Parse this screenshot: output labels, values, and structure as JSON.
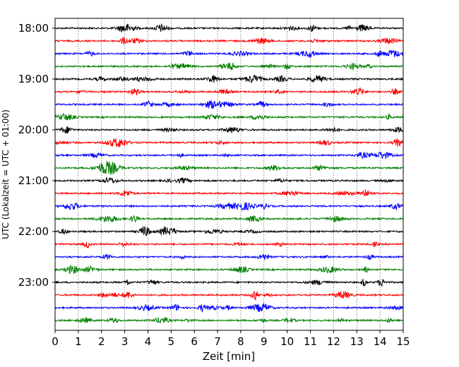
{
  "chart_data": {
    "type": "line",
    "subtype": "helicorder",
    "xlabel": "Zeit  [min]",
    "ylabel": "UTC (Lokalzeit = UTC + 01:00)",
    "xlim": [
      0,
      15
    ],
    "x_ticks": [
      "0",
      "1",
      "2",
      "3",
      "4",
      "5",
      "6",
      "7",
      "8",
      "9",
      "10",
      "11",
      "12",
      "13",
      "14",
      "15"
    ],
    "y_ticks": [
      "18:00",
      "19:00",
      "20:00",
      "21:00",
      "22:00",
      "23:00"
    ],
    "grid": "vertical dotted",
    "trace_colors": [
      "#000000",
      "#ff0000",
      "#0000ff",
      "#008000"
    ],
    "trace_count": 24,
    "minutes_per_trace": 15
  }
}
